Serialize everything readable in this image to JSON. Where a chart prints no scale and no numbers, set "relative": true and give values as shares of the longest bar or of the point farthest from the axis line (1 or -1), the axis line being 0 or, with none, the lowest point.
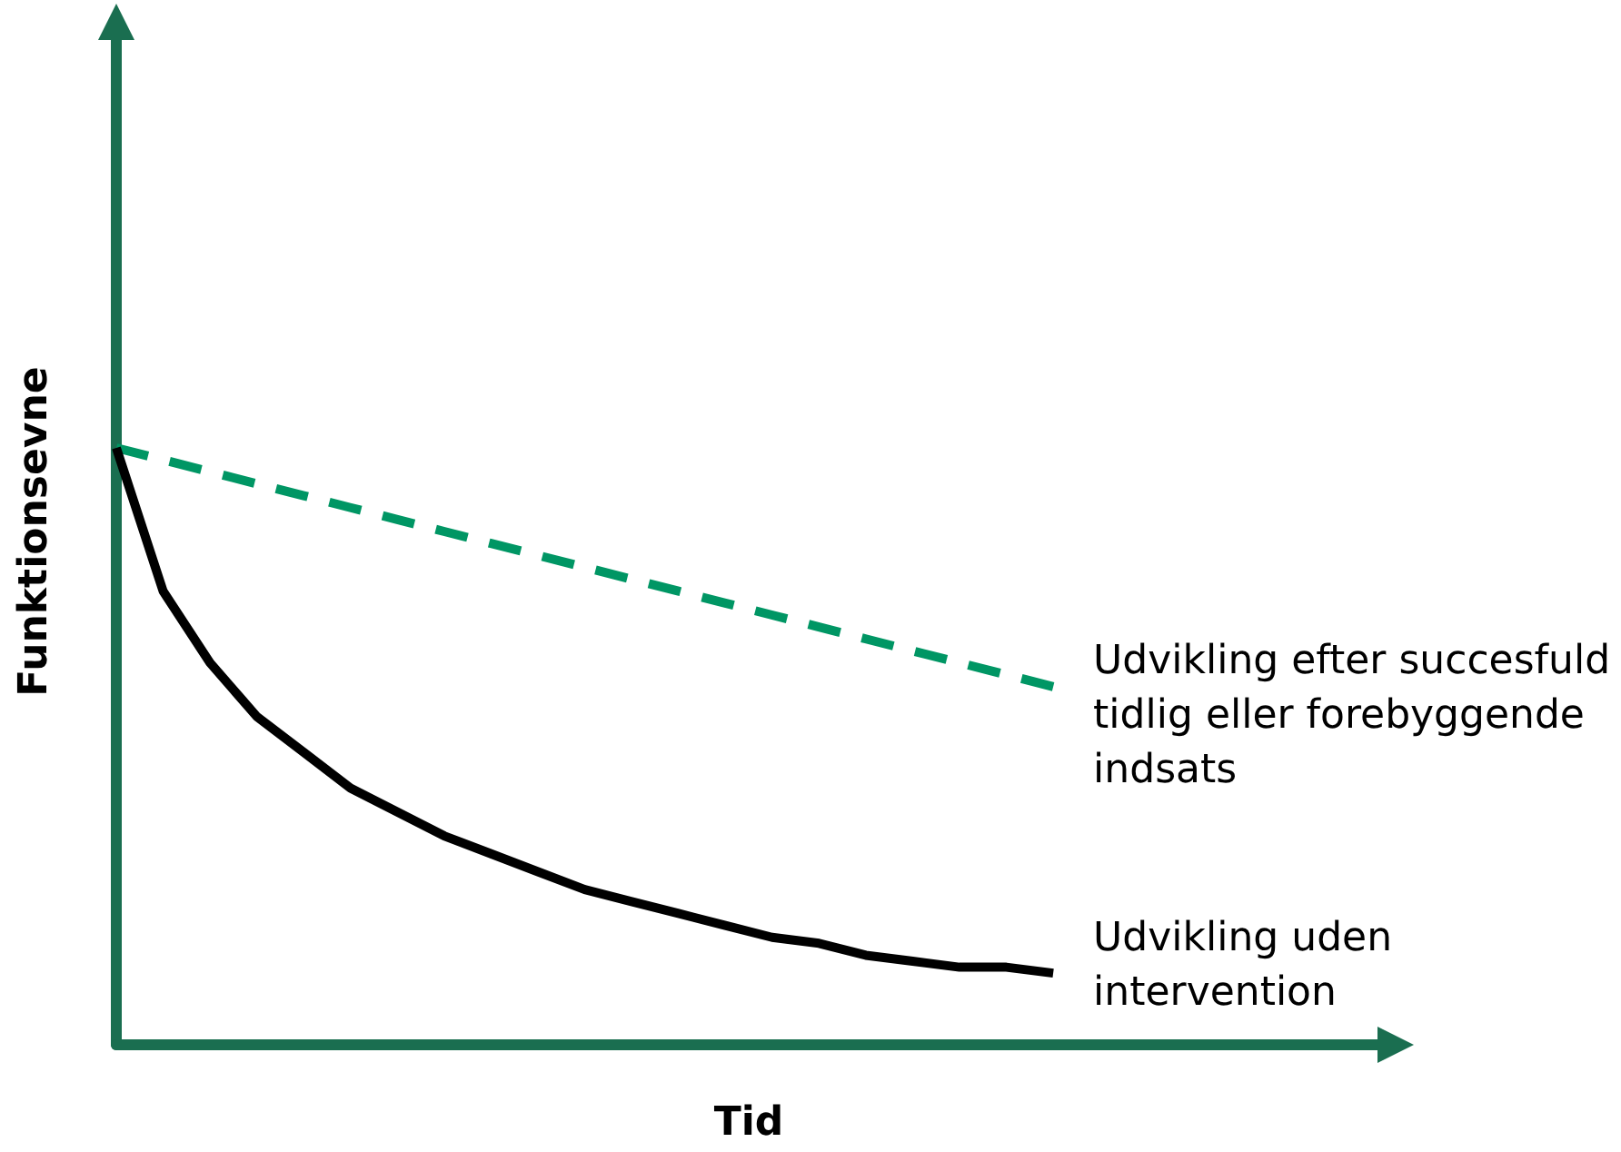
{
  "chart_data": {
    "type": "line",
    "relative": true,
    "xlabel": "Tid",
    "ylabel": "Funktionsevne",
    "legend": false,
    "grid": false,
    "marker": "none",
    "categories": [
      null,
      null,
      null,
      null,
      null,
      null,
      null,
      null,
      null,
      null,
      null,
      null,
      null,
      null,
      null,
      null,
      null,
      null,
      null,
      null,
      null,
      null,
      null,
      null,
      null,
      null,
      null,
      null
    ],
    "series": [
      {
        "name": "Udvikling efter succesfuld tidlig eller forebyggende indsats",
        "color": "#009664",
        "line_style": "dashed",
        "values": [
          1,
          0.98,
          0.96,
          0.94,
          0.92,
          0.9,
          0.88,
          0.86,
          0.84,
          0.82,
          0.8,
          0.78,
          0.76,
          0.74,
          0.72,
          0.7,
          0.68,
          0.66,
          0.64,
          0.62,
          0.6,
          null,
          null,
          null,
          null,
          null,
          null,
          null
        ]
      },
      {
        "name": "Udvikling uden intervention",
        "color": "#000000",
        "line_style": "solid",
        "values": [
          1,
          0.76,
          0.64,
          0.55,
          0.49,
          0.43,
          0.39,
          0.35,
          0.32,
          0.29,
          0.26,
          0.24,
          0.22,
          0.2,
          0.18,
          0.17,
          0.15,
          0.14,
          0.13,
          0.13,
          0.12,
          null,
          null,
          null,
          null,
          null,
          null,
          null
        ]
      }
    ]
  }
}
